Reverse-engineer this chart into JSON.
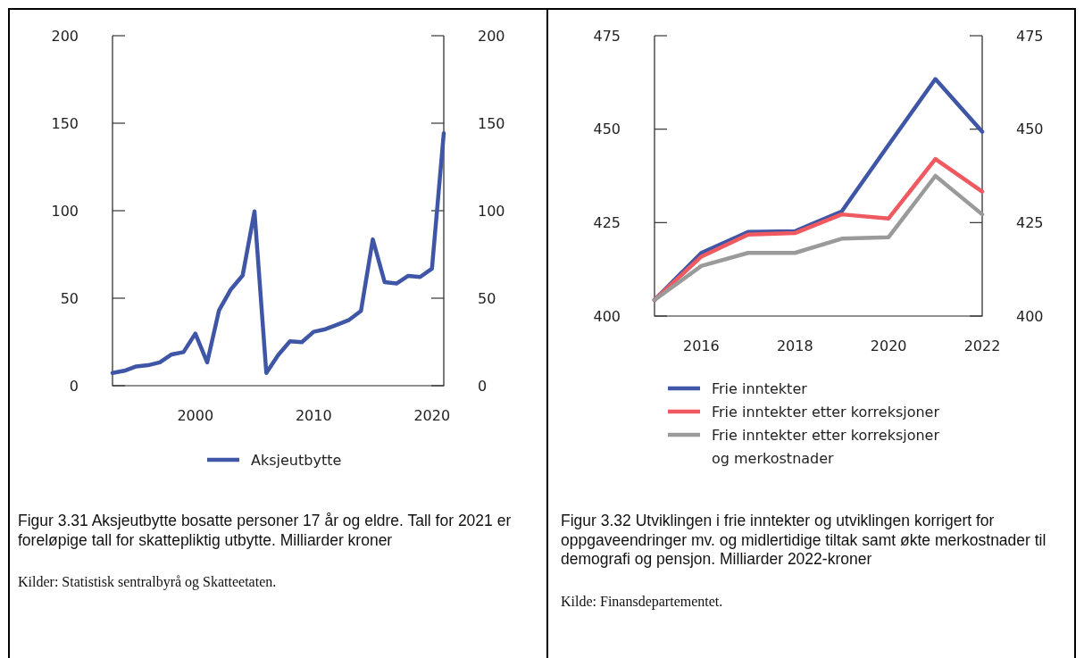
{
  "chart_data": [
    {
      "type": "line",
      "title": "Figur 3.31 Aksjeutbytte bosatte personer 17 år og eldre. Tall for 2021 er foreløpige tall for skattepliktig utbytte. Milliarder kroner",
      "annotations": [
        "Kilder: Statistisk sentralbyrå og Skatteetaten."
      ],
      "x": [
        1993,
        1994,
        1995,
        1996,
        1997,
        1998,
        1999,
        2000,
        2001,
        2002,
        2003,
        2004,
        2005,
        2006,
        2007,
        2008,
        2009,
        2010,
        2011,
        2012,
        2013,
        2014,
        2015,
        2016,
        2017,
        2018,
        2019,
        2020,
        2021
      ],
      "series": [
        {
          "name": "Aksjeutbytte",
          "color": "#3f56a6",
          "values": [
            7.3,
            8.5,
            11,
            11.7,
            13.3,
            17.9,
            19.2,
            29.8,
            13.3,
            43,
            55,
            63,
            99.6,
            7.3,
            17.5,
            25.4,
            24.9,
            30.8,
            32.3,
            34.9,
            37.6,
            42.7,
            83.6,
            59.2,
            58.4,
            62.8,
            62.1,
            66.9,
            144.3
          ]
        }
      ],
      "xlim": [
        1993,
        2021
      ],
      "xticks": [
        2000,
        2010,
        2020
      ],
      "ylim": [
        0,
        200
      ],
      "yticks": [
        0,
        50,
        100,
        150,
        200
      ],
      "y2lim": [
        0,
        200
      ],
      "y2ticks": [
        0,
        50,
        100,
        150,
        200
      ],
      "legend": "bottom"
    },
    {
      "type": "line",
      "title": "Figur 3.32 Utviklingen i frie inntekter og utviklingen korrigert for oppgaveendringer mv. og midlertidige tiltak samt økte merkostnader til demografi og pensjon. Milliarder 2022-kroner",
      "annotations": [
        "Kilde: Finansdepartementet."
      ],
      "x": [
        2015,
        2016,
        2017,
        2018,
        2019,
        2020,
        2021,
        2022
      ],
      "series": [
        {
          "name": "Frie inntekter",
          "color": "#3f56a6",
          "values": [
            404.3,
            416.9,
            422.5,
            422.7,
            428,
            445.8,
            463.4,
            449.3
          ]
        },
        {
          "name": "Frie inntekter etter korreksjoner",
          "color": "#f0595f",
          "values": [
            404.3,
            415.9,
            421.8,
            422.2,
            427.2,
            426.1,
            442,
            433.3
          ]
        },
        {
          "name": "Frie inntekter etter korreksjoner og merkostnader",
          "color": "#9a9a9a",
          "values": [
            404.3,
            413.4,
            416.9,
            416.9,
            420.7,
            421.1,
            437.5,
            427.2
          ]
        }
      ],
      "xlim": [
        2015,
        2022
      ],
      "xticks": [
        2016,
        2018,
        2020,
        2022
      ],
      "ylim": [
        400,
        475
      ],
      "yticks": [
        400,
        425,
        450,
        475
      ],
      "y2lim": [
        400,
        475
      ],
      "y2ticks": [
        400,
        425,
        450,
        475
      ],
      "legend": "bottom"
    }
  ]
}
